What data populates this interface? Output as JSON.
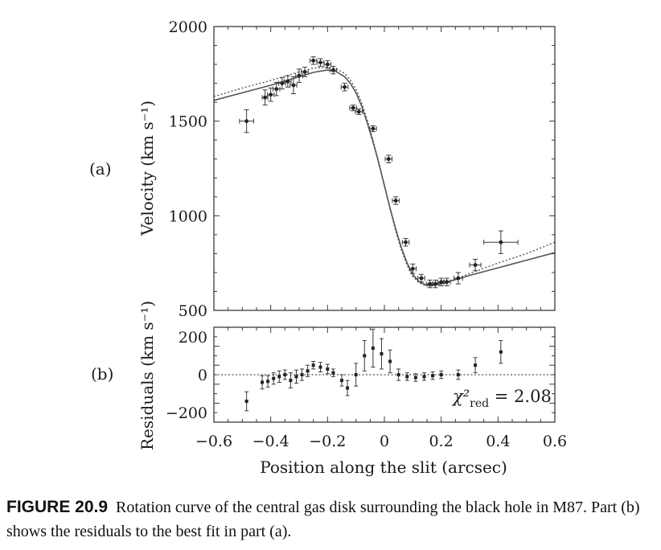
{
  "chart_data": [
    {
      "type": "scatter",
      "panel_label": "(a)",
      "ylabel": "Velocity (km s⁻¹)",
      "xlim": [
        -0.6,
        0.6
      ],
      "ylim": [
        500,
        2000
      ],
      "yticks": [
        "500",
        "1000",
        "1500",
        "2000"
      ],
      "series": [
        {
          "points": [
            {
              "x": -0.485,
              "y": 1500,
              "xerr": 0.025,
              "yerr": 60
            },
            {
              "x": -0.42,
              "y": 1625,
              "xerr": 0.01,
              "yerr": 40
            },
            {
              "x": -0.4,
              "y": 1640,
              "xerr": 0.012,
              "yerr": 35
            },
            {
              "x": -0.38,
              "y": 1670,
              "xerr": 0.012,
              "yerr": 35
            },
            {
              "x": -0.36,
              "y": 1700,
              "xerr": 0.012,
              "yerr": 30
            },
            {
              "x": -0.34,
              "y": 1710,
              "xerr": 0.012,
              "yerr": 30
            },
            {
              "x": -0.32,
              "y": 1690,
              "xerr": 0.012,
              "yerr": 45
            },
            {
              "x": -0.3,
              "y": 1740,
              "xerr": 0.012,
              "yerr": 35
            },
            {
              "x": -0.28,
              "y": 1760,
              "xerr": 0.012,
              "yerr": 25
            },
            {
              "x": -0.25,
              "y": 1820,
              "xerr": 0.012,
              "yerr": 20
            },
            {
              "x": -0.225,
              "y": 1810,
              "xerr": 0.012,
              "yerr": 20
            },
            {
              "x": -0.2,
              "y": 1800,
              "xerr": 0.012,
              "yerr": 20
            },
            {
              "x": -0.18,
              "y": 1770,
              "xerr": 0.012,
              "yerr": 20
            },
            {
              "x": -0.14,
              "y": 1680,
              "xerr": 0.012,
              "yerr": 20
            },
            {
              "x": -0.11,
              "y": 1570,
              "xerr": 0.012,
              "yerr": 15
            },
            {
              "x": -0.09,
              "y": 1550,
              "xerr": 0.012,
              "yerr": 15
            },
            {
              "x": -0.04,
              "y": 1460,
              "xerr": 0.012,
              "yerr": 15
            },
            {
              "x": 0.015,
              "y": 1300,
              "xerr": 0.012,
              "yerr": 20
            },
            {
              "x": 0.04,
              "y": 1080,
              "xerr": 0.012,
              "yerr": 20
            },
            {
              "x": 0.075,
              "y": 860,
              "xerr": 0.012,
              "yerr": 20
            },
            {
              "x": 0.1,
              "y": 720,
              "xerr": 0.012,
              "yerr": 25
            },
            {
              "x": 0.13,
              "y": 670,
              "xerr": 0.012,
              "yerr": 20
            },
            {
              "x": 0.16,
              "y": 640,
              "xerr": 0.012,
              "yerr": 20
            },
            {
              "x": 0.18,
              "y": 640,
              "xerr": 0.012,
              "yerr": 20
            },
            {
              "x": 0.2,
              "y": 650,
              "xerr": 0.012,
              "yerr": 20
            },
            {
              "x": 0.22,
              "y": 650,
              "xerr": 0.012,
              "yerr": 20
            },
            {
              "x": 0.26,
              "y": 670,
              "xerr": 0.015,
              "yerr": 30
            },
            {
              "x": 0.32,
              "y": 740,
              "xerr": 0.02,
              "yerr": 30
            },
            {
              "x": 0.41,
              "y": 860,
              "xerr": 0.06,
              "yerr": 60
            }
          ]
        }
      ],
      "model_solid_x": [
        -0.6,
        -0.5,
        -0.4,
        -0.3,
        -0.25,
        -0.2,
        -0.17,
        -0.14,
        -0.12,
        -0.1,
        -0.08,
        -0.06,
        -0.04,
        -0.02,
        0,
        0.02,
        0.04,
        0.06,
        0.08,
        0.1,
        0.12,
        0.14,
        0.16,
        0.18,
        0.2,
        0.25,
        0.3,
        0.4,
        0.5,
        0.6
      ],
      "model_solid_y": [
        1610,
        1650,
        1690,
        1735,
        1758,
        1770,
        1762,
        1735,
        1700,
        1650,
        1580,
        1490,
        1390,
        1280,
        1160,
        1040,
        930,
        830,
        750,
        690,
        655,
        638,
        634,
        636,
        642,
        662,
        685,
        725,
        765,
        805
      ],
      "model_dotted_x": [
        -0.6,
        -0.5,
        -0.4,
        -0.3,
        -0.25,
        -0.2,
        -0.17,
        -0.14,
        -0.12,
        -0.1,
        -0.08,
        -0.06,
        -0.04,
        -0.02,
        0,
        0.02,
        0.04,
        0.06,
        0.08,
        0.1,
        0.12,
        0.14,
        0.16,
        0.18,
        0.2,
        0.25,
        0.3,
        0.4,
        0.5,
        0.6
      ],
      "model_dotted_y": [
        1630,
        1675,
        1715,
        1760,
        1780,
        1786,
        1778,
        1752,
        1718,
        1668,
        1598,
        1505,
        1400,
        1285,
        1160,
        1035,
        920,
        818,
        738,
        680,
        648,
        632,
        628,
        632,
        640,
        665,
        695,
        750,
        800,
        860
      ]
    },
    {
      "type": "scatter",
      "panel_label": "(b)",
      "ylabel": "Residuals (km s⁻¹)",
      "xlabel": "Position along the slit (arcsec)",
      "xlim": [
        -0.6,
        0.6
      ],
      "ylim": [
        -250,
        250
      ],
      "xticks": [
        "−0.6",
        "−0.4",
        "−0.2",
        "0",
        "0.2",
        "0.4",
        "0.6"
      ],
      "yticks": [
        "−200",
        "0",
        "200"
      ],
      "annotation": "χ²",
      "annotation_sub": "red",
      "annotation_value": " = 2.08",
      "series": [
        {
          "points": [
            {
              "x": -0.485,
              "y": -140,
              "yerr": 50
            },
            {
              "x": -0.43,
              "y": -40,
              "yerr": 35
            },
            {
              "x": -0.41,
              "y": -35,
              "yerr": 30
            },
            {
              "x": -0.39,
              "y": -20,
              "yerr": 30
            },
            {
              "x": -0.37,
              "y": -10,
              "yerr": 30
            },
            {
              "x": -0.35,
              "y": 0,
              "yerr": 25
            },
            {
              "x": -0.33,
              "y": -30,
              "yerr": 40
            },
            {
              "x": -0.31,
              "y": -10,
              "yerr": 35
            },
            {
              "x": -0.29,
              "y": 0,
              "yerr": 30
            },
            {
              "x": -0.27,
              "y": 20,
              "yerr": 30
            },
            {
              "x": -0.25,
              "y": 50,
              "yerr": 20
            },
            {
              "x": -0.225,
              "y": 40,
              "yerr": 25
            },
            {
              "x": -0.2,
              "y": 30,
              "yerr": 25
            },
            {
              "x": -0.18,
              "y": 10,
              "yerr": 20
            },
            {
              "x": -0.15,
              "y": -30,
              "yerr": 30
            },
            {
              "x": -0.13,
              "y": -70,
              "yerr": 40
            },
            {
              "x": -0.1,
              "y": 0,
              "yerr": 60
            },
            {
              "x": -0.07,
              "y": 100,
              "yerr": 80
            },
            {
              "x": -0.04,
              "y": 140,
              "yerr": 100
            },
            {
              "x": -0.01,
              "y": 110,
              "yerr": 80
            },
            {
              "x": 0.02,
              "y": 70,
              "yerr": 60
            },
            {
              "x": 0.05,
              "y": 0,
              "yerr": 30
            },
            {
              "x": 0.08,
              "y": -10,
              "yerr": 20
            },
            {
              "x": 0.11,
              "y": -15,
              "yerr": 20
            },
            {
              "x": 0.14,
              "y": -10,
              "yerr": 20
            },
            {
              "x": 0.17,
              "y": -5,
              "yerr": 20
            },
            {
              "x": 0.2,
              "y": 0,
              "yerr": 20
            },
            {
              "x": 0.26,
              "y": 0,
              "yerr": 25
            },
            {
              "x": 0.32,
              "y": 50,
              "yerr": 40
            },
            {
              "x": 0.41,
              "y": 120,
              "yerr": 60
            }
          ]
        }
      ]
    }
  ],
  "caption": {
    "figure_number": "FIGURE 20.9",
    "text": "Rotation curve of the central gas disk surrounding the black hole in M87. Part (b) shows the residuals to the best fit in part (a)."
  }
}
